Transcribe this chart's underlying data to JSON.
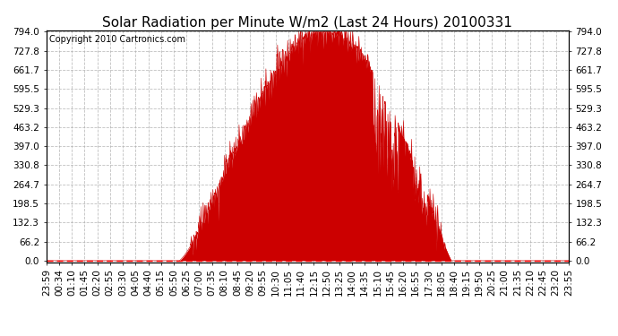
{
  "title": "Solar Radiation per Minute W/m2 (Last 24 Hours) 20100331",
  "copyright": "Copyright 2010 Cartronics.com",
  "yticks": [
    0.0,
    66.2,
    132.3,
    198.5,
    264.7,
    330.8,
    397.0,
    463.2,
    529.3,
    595.5,
    661.7,
    727.8,
    794.0
  ],
  "ymax": 794.0,
  "ymin": 0.0,
  "fill_color": "#cc0000",
  "line_color": "#cc0000",
  "dashed_line_color": "#ff0000",
  "background_color": "#ffffff",
  "grid_color": "#b0b0b0",
  "title_fontsize": 11,
  "copyright_fontsize": 7,
  "tick_fontsize": 7.5,
  "xtick_labels": [
    "23:59",
    "00:34",
    "01:10",
    "01:45",
    "02:20",
    "02:55",
    "03:30",
    "04:05",
    "04:40",
    "05:15",
    "05:50",
    "06:25",
    "07:00",
    "07:35",
    "08:10",
    "08:45",
    "09:20",
    "09:55",
    "10:30",
    "11:05",
    "11:40",
    "12:15",
    "12:50",
    "13:25",
    "14:00",
    "14:35",
    "15:10",
    "15:45",
    "16:20",
    "16:55",
    "17:30",
    "18:05",
    "18:40",
    "19:15",
    "19:50",
    "20:25",
    "21:00",
    "21:35",
    "22:10",
    "22:45",
    "23:20",
    "23:55"
  ]
}
